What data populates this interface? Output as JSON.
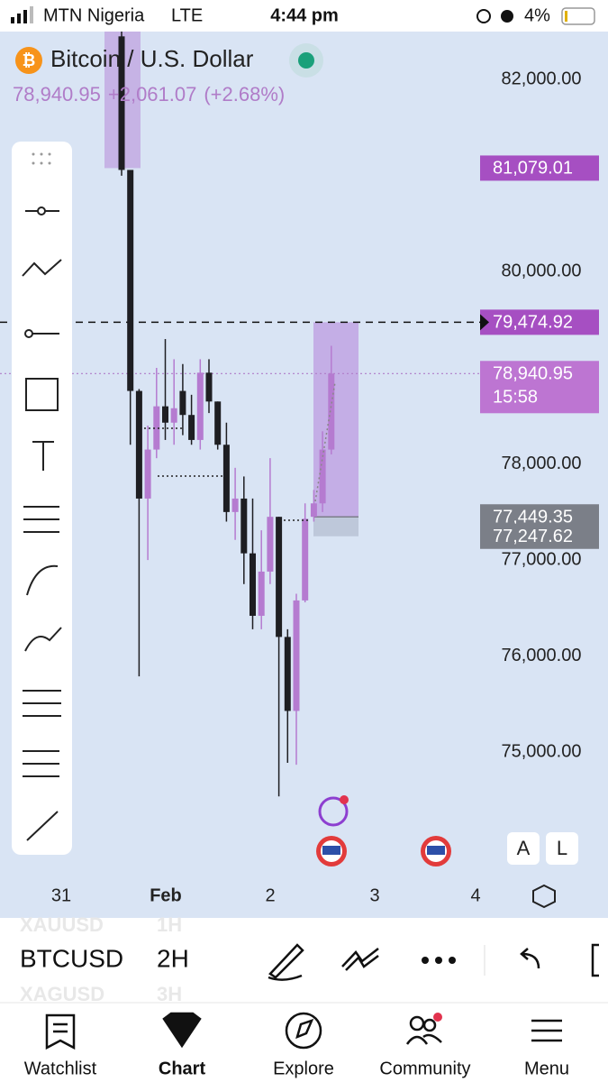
{
  "status_bar": {
    "carrier": "MTN Nigeria",
    "network": "LTE",
    "time": "4:44 pm",
    "battery": "4%"
  },
  "chart_data": {
    "type": "candlestick",
    "title": "Bitcoin / U.S. Dollar",
    "price": "78,940.95",
    "change": "+2,061.07",
    "change_percent": "(+2.68%)",
    "up_color": "#b57bd0",
    "down_color": "#1e1e22",
    "open": [
      82450,
      81060,
      78760,
      77640,
      78150,
      78600,
      78430,
      78760,
      78510,
      78250,
      78950,
      78650,
      78200,
      77500,
      77640,
      77070,
      76420,
      76880,
      77450,
      76200,
      75430,
      76580,
      77450,
      77590,
      78150
    ],
    "high": [
      82550,
      81060,
      78780,
      78400,
      79000,
      79300,
      79090,
      79040,
      78720,
      79090,
      79090,
      78650,
      78430,
      77960,
      77870,
      77640,
      77310,
      78060,
      77450,
      76280,
      76650,
      77590,
      77730,
      78340,
      79230
    ],
    "low": [
      81000,
      78200,
      75790,
      77000,
      78060,
      78250,
      78200,
      78300,
      78200,
      78150,
      78530,
      78150,
      77400,
      77210,
      76750,
      76280,
      76280,
      76750,
      74540,
      74890,
      74870,
      76560,
      77400,
      77500,
      78100
    ],
    "close": [
      81060,
      78760,
      77640,
      78150,
      78600,
      78430,
      78580,
      78510,
      78250,
      78950,
      78650,
      78200,
      77500,
      77640,
      77070,
      76420,
      76880,
      77450,
      76200,
      75430,
      76580,
      77430,
      77590,
      78150,
      78940.95
    ],
    "ylim": [
      73750,
      82500
    ],
    "yticks": [
      {
        "value": 75000,
        "label": "75,000.00"
      },
      {
        "value": 76000,
        "label": "76,000.00"
      },
      {
        "value": 77000,
        "label": "77,000.00"
      },
      {
        "value": 78000,
        "label": "78,000.00"
      },
      {
        "value": 80000,
        "label": "80,000.00"
      },
      {
        "value": 82000,
        "label": "82,000.00"
      }
    ],
    "price_labels": [
      {
        "value": 81079.01,
        "label": "81,079.01",
        "color": "#a64fc2"
      },
      {
        "value": 79474.92,
        "label": "79,474.92",
        "color": "#a64fc2"
      },
      {
        "value": 78940.95,
        "label": "78,940.95",
        "color": "#bd75d2"
      },
      {
        "value": 77449.35,
        "label": "77,449.35",
        "color": "#7b7f88"
      },
      {
        "value": 77247.62,
        "label": "77,247.62",
        "color": "#7b7f88"
      }
    ],
    "countdown": "15:58",
    "x_labels": [
      "31",
      "Feb",
      "2",
      "3",
      "4"
    ],
    "chart_buttons": [
      "A",
      "L"
    ]
  },
  "toolbar": {
    "symbol": "BTCUSD",
    "interval": "2H",
    "prev_symbol": "XAUUSD",
    "prev_interval": "1H",
    "next_symbol": "XAGUSD",
    "next_interval": "3H"
  },
  "nav": [
    "Watchlist",
    "Chart",
    "Explore",
    "Community",
    "Menu"
  ]
}
